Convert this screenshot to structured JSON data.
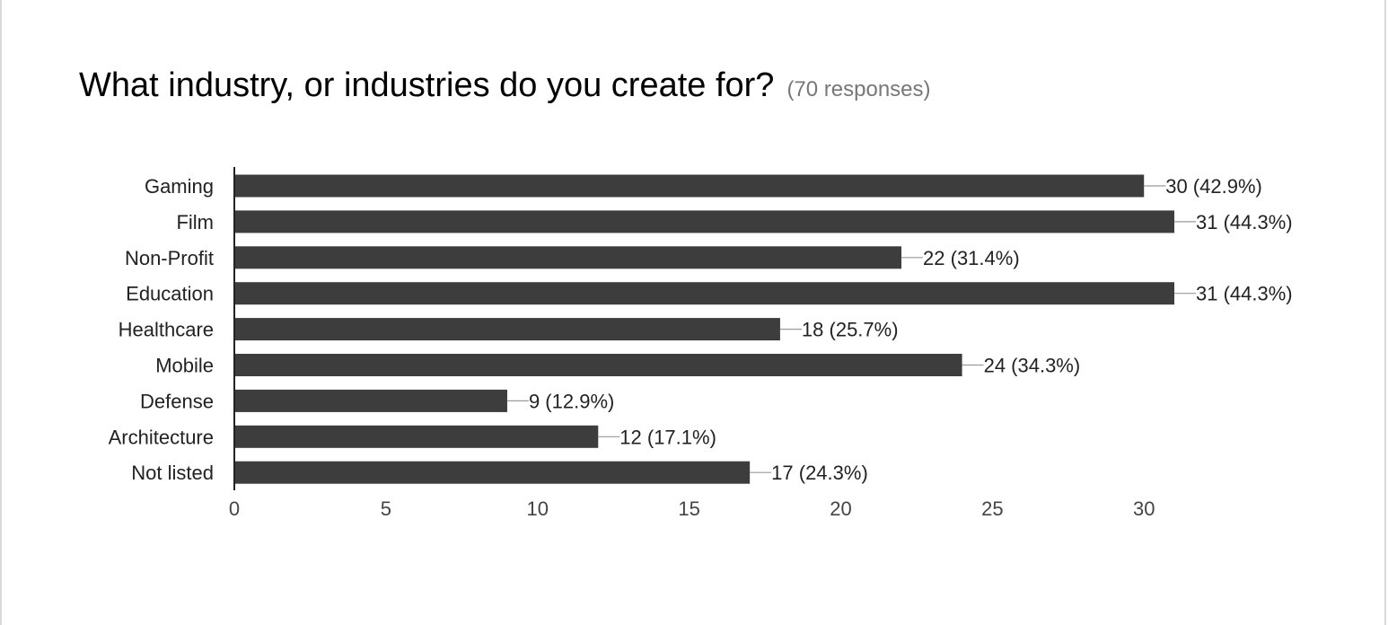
{
  "question": {
    "title": "What industry, or industries do you create for?",
    "responses": "(70 responses)"
  },
  "colors": {
    "bar": "#3d3d3d",
    "axis": "#222222",
    "leader_line": "#999999",
    "category_text": "#222222",
    "value_text": "#222222",
    "tick_text": "#444444"
  },
  "chart_data": {
    "type": "bar",
    "orientation": "horizontal",
    "categories": [
      "Gaming",
      "Film",
      "Non-Profit",
      "Education",
      "Healthcare",
      "Mobile",
      "Defense",
      "Architecture",
      "Not listed"
    ],
    "values": [
      30,
      31,
      22,
      31,
      18,
      24,
      9,
      12,
      17
    ],
    "data_labels": [
      "30 (42.9%)",
      "31 (44.3%)",
      "22 (31.4%)",
      "31 (44.3%)",
      "18 (25.7%)",
      "24 (34.3%)",
      "9 (12.9%)",
      "12 (17.1%)",
      "17 (24.3%)"
    ],
    "xticks": [
      0,
      5,
      10,
      15,
      20,
      25,
      30
    ],
    "xlim": [
      0,
      31
    ],
    "grid": false,
    "legend": "none"
  }
}
